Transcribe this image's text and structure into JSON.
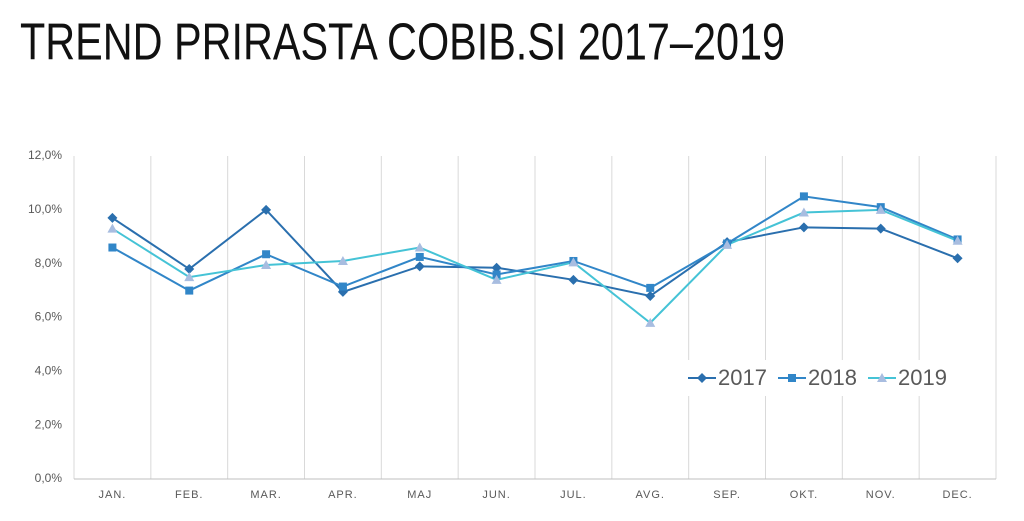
{
  "chart_data": {
    "type": "line",
    "title": "TREND PRIRASTA COBIB.SI 2017–2019",
    "categories": [
      "JAN.",
      "FEB.",
      "MAR.",
      "APR.",
      "MAJ",
      "JUN.",
      "JUL.",
      "AVG.",
      "SEP.",
      "OKT.",
      "NOV.",
      "DEC."
    ],
    "series": [
      {
        "name": "2017",
        "color": "#2a6fae",
        "marker": "diamond",
        "values": [
          9.7,
          7.8,
          10.0,
          6.95,
          7.9,
          7.85,
          7.4,
          6.8,
          8.8,
          9.35,
          9.3,
          8.2
        ]
      },
      {
        "name": "2018",
        "color": "#3186c8",
        "marker": "square",
        "values": [
          8.6,
          7.0,
          8.35,
          7.15,
          8.25,
          7.6,
          8.1,
          7.1,
          8.75,
          10.5,
          10.1,
          8.9
        ]
      },
      {
        "name": "2019",
        "color": "#45c3d6",
        "marker": "triangle",
        "values": [
          9.3,
          7.5,
          7.95,
          8.1,
          8.6,
          7.4,
          8.05,
          5.8,
          8.7,
          9.9,
          10.0,
          8.85
        ]
      }
    ],
    "ylim": [
      0,
      12
    ],
    "yticks": [
      {
        "value": 0,
        "label": "0,0%"
      },
      {
        "value": 2,
        "label": "2,0%"
      },
      {
        "value": 4,
        "label": "4,0%"
      },
      {
        "value": 6,
        "label": "6,0%"
      },
      {
        "value": 8,
        "label": "8,0%"
      },
      {
        "value": 10,
        "label": "10,0%"
      },
      {
        "value": 12,
        "label": "12,0%"
      }
    ],
    "grid": true,
    "legend_position": "right"
  }
}
